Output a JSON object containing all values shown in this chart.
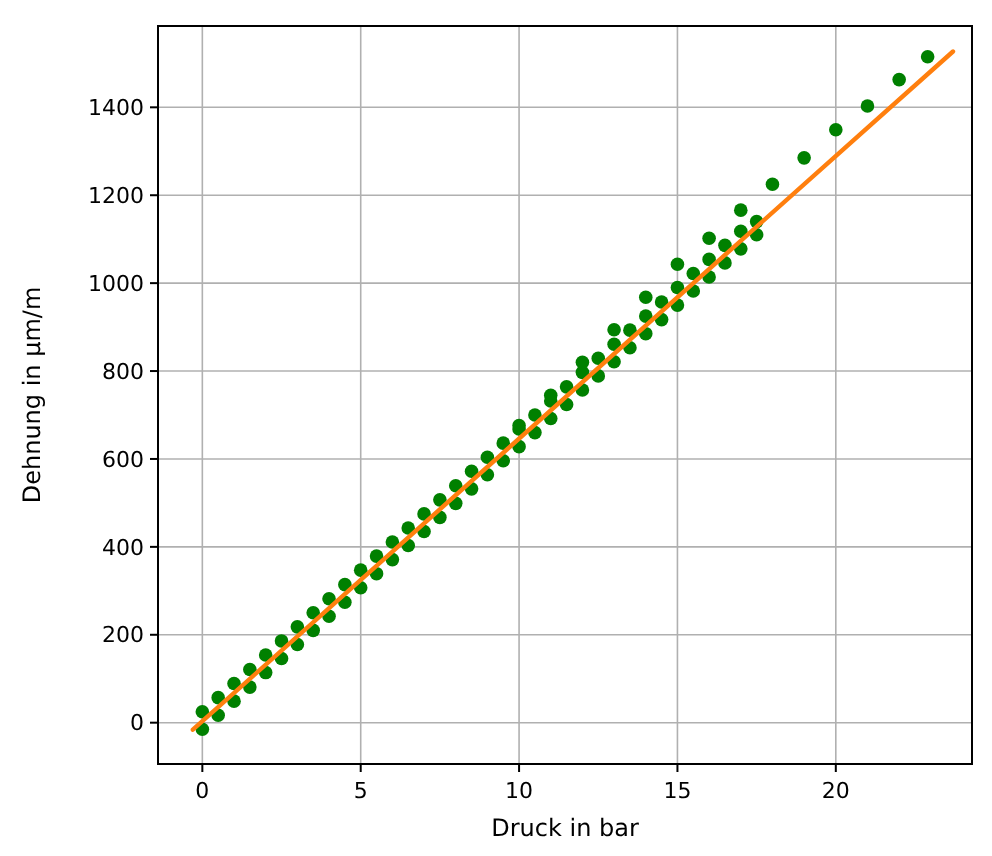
{
  "chart_data": {
    "type": "scatter",
    "xlabel": "Druck in bar",
    "ylabel": "Dehnung in µm/m",
    "xlim": [
      -1.4,
      24.3
    ],
    "ylim": [
      -94,
      1585
    ],
    "xticks": [
      0,
      5,
      10,
      15,
      20
    ],
    "yticks": [
      0,
      200,
      400,
      600,
      800,
      1000,
      1200,
      1400
    ],
    "grid": true,
    "marker": "circle",
    "series": [
      {
        "type": "scatter",
        "color": "#008000",
        "x": [
          0,
          0,
          0.5,
          0.5,
          1,
          1,
          1.5,
          1.5,
          2,
          2,
          2.5,
          2.5,
          3,
          3,
          3.5,
          3.5,
          4,
          4,
          4.5,
          4.5,
          5,
          5,
          5.5,
          5.5,
          6,
          6,
          6.5,
          6.5,
          7,
          7,
          7.5,
          7.5,
          8,
          8,
          8.5,
          8.5,
          9,
          9,
          9.5,
          9.5,
          10,
          10,
          10.5,
          10.5,
          11,
          11,
          11.5,
          11.5,
          12,
          12,
          12.5,
          12.5,
          13,
          13,
          13.5,
          13.5,
          14,
          14,
          14.5,
          14.5,
          15,
          15,
          15.5,
          15.5,
          16,
          16,
          16.5,
          16.5,
          17,
          17,
          17.5,
          17.5,
          10,
          11,
          12,
          13,
          14,
          15,
          16,
          17,
          18,
          19,
          20,
          21,
          22,
          22.9
        ],
        "values": [
          25,
          -15,
          57,
          17,
          89,
          49,
          121,
          81,
          154,
          114,
          186,
          146,
          218,
          178,
          250,
          210,
          282,
          242,
          314,
          274,
          347,
          307,
          379,
          339,
          411,
          371,
          443,
          403,
          475,
          435,
          507,
          467,
          539,
          499,
          572,
          532,
          604,
          564,
          636,
          596,
          668,
          628,
          700,
          660,
          732,
          692,
          764,
          724,
          797,
          757,
          829,
          789,
          861,
          821,
          893,
          853,
          925,
          885,
          957,
          917,
          990,
          950,
          1022,
          982,
          1054,
          1014,
          1086,
          1046,
          1118,
          1078,
          1140,
          1110,
          676,
          745,
          820,
          894,
          968,
          1043,
          1102,
          1166,
          1225,
          1285,
          1349,
          1403,
          1463,
          1515
        ]
      },
      {
        "type": "line",
        "color": "#ff7f0e",
        "marker": "none",
        "line_style": "solid",
        "x": [
          -0.3,
          23.7
        ],
        "values": [
          -16,
          1527
        ]
      }
    ]
  }
}
